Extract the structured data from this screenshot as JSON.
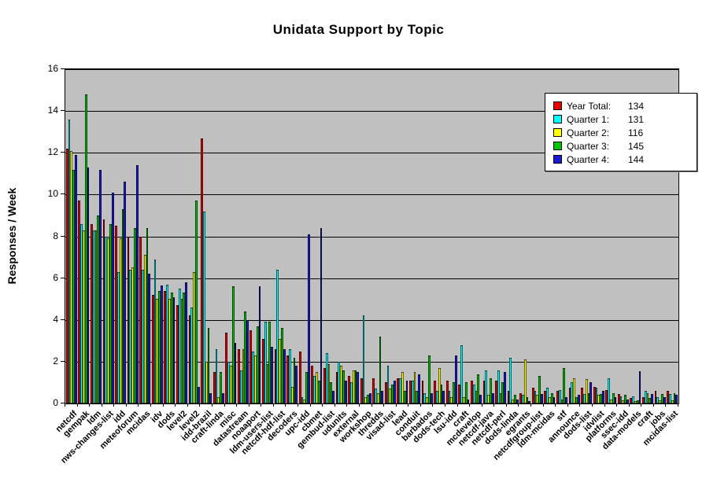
{
  "title": "Unidata Support by Topic",
  "y_axis_title": "Responses / Week",
  "chart_data": {
    "type": "bar",
    "title": "Unidata Support by Topic",
    "xlabel": "",
    "ylabel": "Responses / Week",
    "ylim": [
      0,
      16
    ],
    "ytick_interval": 2,
    "grid": true,
    "plot_background": "#c0c0c0",
    "legend_position": "top-right",
    "categories": [
      "netcdf",
      "gempak",
      "ldm",
      "nws-changes-list",
      "idd",
      "meteoforum",
      "mcidas",
      "idv",
      "dods",
      "level2",
      "level2",
      "idd-brazil",
      "craft-linda",
      "misc",
      "datastream",
      "noaaport",
      "ldm-users-list",
      "netcdf-hdf-list",
      "decoders",
      "upc-idd",
      "cbmet",
      "gembud-list",
      "udunits",
      "external",
      "workshop",
      "thredds",
      "visad-list",
      "lead",
      "conduit",
      "barbados",
      "dods-tech",
      "lsu-idd",
      "craft",
      "mcdevelop",
      "netcdf-java",
      "netcdf-perl",
      "dods-linda",
      "egrants",
      "netcdfgroup-list",
      "ldm-mcidas",
      "stf",
      "announce",
      "dods-list",
      "idvlist",
      "platforms",
      "ssec-idd",
      "data-models",
      "craft",
      "jobs",
      "mcidas-list"
    ],
    "series": [
      {
        "name": "Year Total",
        "legend_label": "Year Total:",
        "legend_value": "134",
        "color": "#e60000",
        "values": [
          12.2,
          9.7,
          8.6,
          8.8,
          8.5,
          8.0,
          8.0,
          5.2,
          5.4,
          4.7,
          4.2,
          12.7,
          1.5,
          3.4,
          2.6,
          3.5,
          3.1,
          2.6,
          2.3,
          2.5,
          1.8,
          1.7,
          1.5,
          1.3,
          1.2,
          1.2,
          1.0,
          1.2,
          1.1,
          1.1,
          1.1,
          1.1,
          0.9,
          1.1,
          1.1,
          1.1,
          0.6,
          0.5,
          0.75,
          0.6,
          0.6,
          0.75,
          0.75,
          0.8,
          0.65,
          0.45,
          0.25,
          0.3,
          0.6,
          0.6
        ]
      },
      {
        "name": "Quarter 1",
        "legend_label": "Quarter 1:",
        "legend_value": "131",
        "color": "#00ffff",
        "values": [
          13.6,
          8.6,
          8.3,
          8.0,
          6.3,
          6.4,
          6.4,
          6.9,
          5.7,
          5.5,
          4.6,
          9.2,
          2.6,
          2.0,
          1.6,
          2.5,
          3.9,
          6.4,
          2.6,
          0.3,
          1.3,
          2.4,
          2.0,
          1.0,
          4.2,
          0.7,
          1.8,
          1.2,
          1.1,
          0.5,
          0.6,
          0.6,
          2.8,
          0.9,
          1.6,
          1.6,
          2.2,
          0.4,
          0.6,
          0.75,
          0.65,
          1.0,
          0.45,
          0.75,
          1.2,
          0.35,
          0.35,
          0.6,
          0.3,
          0.45
        ]
      },
      {
        "name": "Quarter 2",
        "legend_label": "Quarter 2:",
        "legend_value": "116",
        "color": "#ffff00",
        "values": [
          12.1,
          8.3,
          8.3,
          7.9,
          7.9,
          6.5,
          7.1,
          5.0,
          5.0,
          5.0,
          6.3,
          2.0,
          0.3,
          1.8,
          2.6,
          2.3,
          1.9,
          3.1,
          0.8,
          0.2,
          1.5,
          1.9,
          1.8,
          1.6,
          0.3,
          0.5,
          0.7,
          1.5,
          1.5,
          0.3,
          1.7,
          0.3,
          0.3,
          0.6,
          0.4,
          0.5,
          0.2,
          2.1,
          0.4,
          0.3,
          0.2,
          1.2,
          1.15,
          0.4,
          0.2,
          0.15,
          0.1,
          0.5,
          0.15,
          0.15
        ]
      },
      {
        "name": "Quarter 3",
        "legend_label": "Quarter 3:",
        "legend_value": "145",
        "color": "#00c400",
        "values": [
          11.2,
          14.8,
          9.0,
          8.6,
          9.3,
          8.4,
          8.4,
          5.4,
          5.3,
          5.3,
          9.7,
          3.6,
          1.5,
          5.6,
          4.4,
          3.7,
          3.9,
          3.6,
          2.2,
          1.5,
          1.1,
          1.0,
          1.6,
          1.6,
          0.4,
          3.2,
          0.9,
          0.6,
          0.6,
          2.3,
          0.9,
          1.0,
          1.0,
          1.4,
          1.2,
          1.0,
          0.4,
          0.3,
          1.3,
          0.5,
          1.7,
          0.3,
          0.5,
          0.45,
          0.5,
          0.4,
          0.15,
          0.25,
          0.45,
          0.5
        ]
      },
      {
        "name": "Quarter 4",
        "legend_label": "Quarter 4:",
        "legend_value": "144",
        "color": "#1a1ad2",
        "values": [
          11.9,
          11.3,
          11.2,
          10.1,
          10.6,
          11.4,
          6.2,
          5.65,
          5.1,
          5.8,
          0.8,
          0.5,
          0.5,
          2.9,
          4.0,
          5.6,
          2.7,
          2.6,
          1.8,
          8.1,
          8.4,
          0.6,
          1.1,
          1.5,
          0.5,
          0.6,
          1.1,
          1.1,
          1.4,
          0.5,
          0.6,
          2.3,
          0.2,
          0.4,
          0.5,
          1.5,
          0.2,
          0.1,
          0.45,
          0.3,
          0.3,
          0.4,
          1.0,
          0.6,
          0.3,
          0.2,
          1.55,
          0.45,
          0.3,
          0.4
        ]
      }
    ]
  }
}
